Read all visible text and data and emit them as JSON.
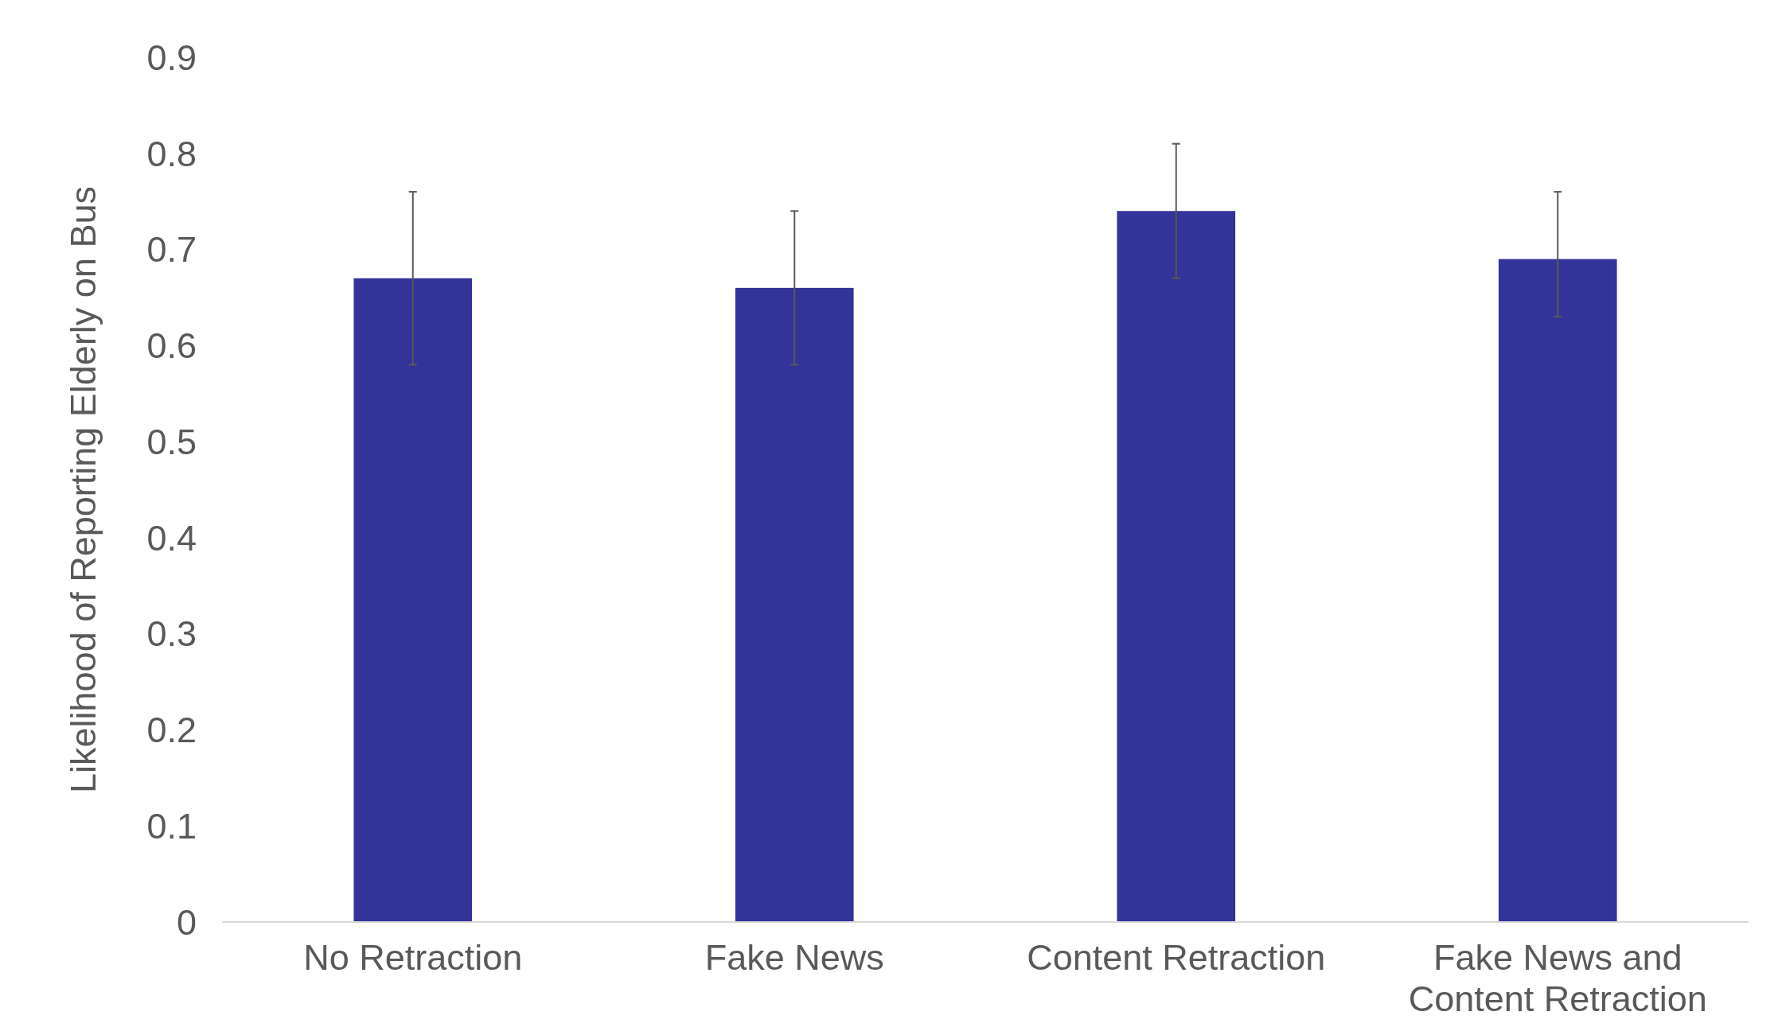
{
  "chart_data": {
    "type": "bar",
    "ylabel": "Likelihood of Reporting Elderly on Bus",
    "categories": [
      "No Retraction",
      "Fake News",
      "Content Retraction",
      "Fake News and Content Retraction"
    ],
    "values": [
      0.67,
      0.66,
      0.74,
      0.69
    ],
    "errors": [
      [
        0.58,
        0.76
      ],
      [
        0.58,
        0.74
      ],
      [
        0.67,
        0.81
      ],
      [
        0.63,
        0.76
      ]
    ],
    "color": "#333399",
    "ylim": [
      0,
      0.9
    ],
    "yticks": [
      0,
      0.1,
      0.2,
      0.3,
      0.4,
      0.5,
      0.6,
      0.7,
      0.8,
      0.9
    ],
    "grid": false
  }
}
